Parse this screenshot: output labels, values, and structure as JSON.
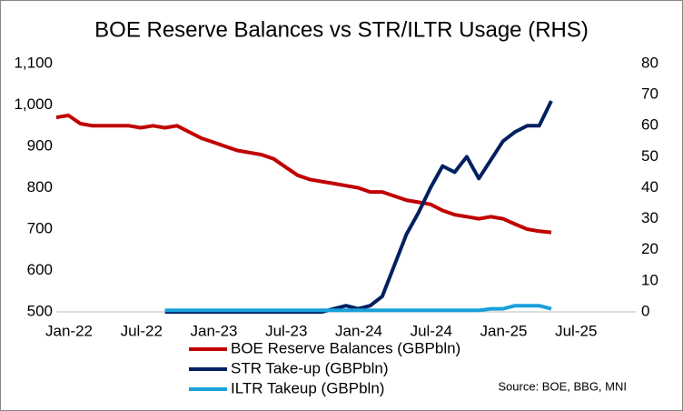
{
  "chart_data": {
    "type": "line",
    "title": "BOE Reserve Balances vs STR/ILTR Usage (RHS)",
    "x": [
      "2022-01",
      "2022-02",
      "2022-03",
      "2022-04",
      "2022-05",
      "2022-06",
      "2022-07",
      "2022-08",
      "2022-09",
      "2022-10",
      "2022-11",
      "2022-12",
      "2023-01",
      "2023-02",
      "2023-03",
      "2023-04",
      "2023-05",
      "2023-06",
      "2023-07",
      "2023-08",
      "2023-09",
      "2023-10",
      "2023-11",
      "2023-12",
      "2024-01",
      "2024-02",
      "2024-03",
      "2024-04",
      "2024-05",
      "2024-06",
      "2024-07",
      "2024-08",
      "2024-09",
      "2024-10",
      "2024-11",
      "2024-12",
      "2025-01",
      "2025-02",
      "2025-03",
      "2025-04",
      "2025-05",
      "2025-06"
    ],
    "series": [
      {
        "name": "BOE Reserve Balances (GBPbln)",
        "color": "#c00000",
        "axis": "y",
        "values": [
          970,
          975,
          955,
          950,
          950,
          950,
          950,
          945,
          950,
          945,
          950,
          935,
          920,
          910,
          900,
          890,
          885,
          880,
          870,
          850,
          830,
          820,
          815,
          810,
          805,
          800,
          790,
          790,
          780,
          770,
          765,
          760,
          745,
          735,
          730,
          725,
          730,
          725,
          712,
          700,
          695,
          692
        ]
      },
      {
        "name": "STR Take-up (GBPbln)",
        "color": "#002060",
        "axis": "y2",
        "values": [
          null,
          null,
          null,
          null,
          null,
          null,
          null,
          null,
          null,
          0,
          0,
          0,
          0,
          0,
          0,
          0,
          0,
          0,
          0,
          0,
          0,
          0,
          0,
          1,
          2,
          1,
          2,
          5,
          15,
          25,
          32,
          40,
          47,
          45,
          50,
          43,
          49,
          55,
          58,
          60,
          60,
          68
        ]
      },
      {
        "name": "ILTR Takeup (GBPbln)",
        "color": "#1aa0db",
        "axis": "y2",
        "values": [
          null,
          null,
          null,
          null,
          null,
          null,
          null,
          null,
          null,
          0.5,
          0.5,
          0.5,
          0.5,
          0.5,
          0.5,
          0.5,
          0.5,
          0.5,
          0.5,
          0.5,
          0.5,
          0.5,
          0.5,
          0.5,
          0.5,
          0.5,
          0.5,
          0.5,
          0.5,
          0.5,
          0.5,
          0.5,
          0.5,
          0.5,
          0.5,
          0.5,
          1,
          1,
          2,
          2,
          2,
          1
        ]
      }
    ],
    "xlim": [
      "2022-01",
      "2026-01"
    ],
    "xticks": [
      {
        "value": "2022-01",
        "label": "Jan-22"
      },
      {
        "value": "2022-07",
        "label": "Jul-22"
      },
      {
        "value": "2023-01",
        "label": "Jan-23"
      },
      {
        "value": "2023-07",
        "label": "Jul-23"
      },
      {
        "value": "2024-01",
        "label": "Jan-24"
      },
      {
        "value": "2024-07",
        "label": "Jul-24"
      },
      {
        "value": "2025-01",
        "label": "Jan-25"
      },
      {
        "value": "2025-07",
        "label": "Jul-25"
      }
    ],
    "ylim": [
      500,
      1100
    ],
    "yticks": [
      500,
      600,
      700,
      800,
      900,
      {
        "value": 1000,
        "label": "1,000"
      },
      {
        "value": 1100,
        "label": "1,100"
      }
    ],
    "y2lim": [
      0,
      80
    ],
    "y2ticks": [
      0,
      10,
      20,
      30,
      40,
      50,
      60,
      70,
      80
    ],
    "legend": "bottom",
    "source": "Source: BOE, BBG, MNI"
  }
}
